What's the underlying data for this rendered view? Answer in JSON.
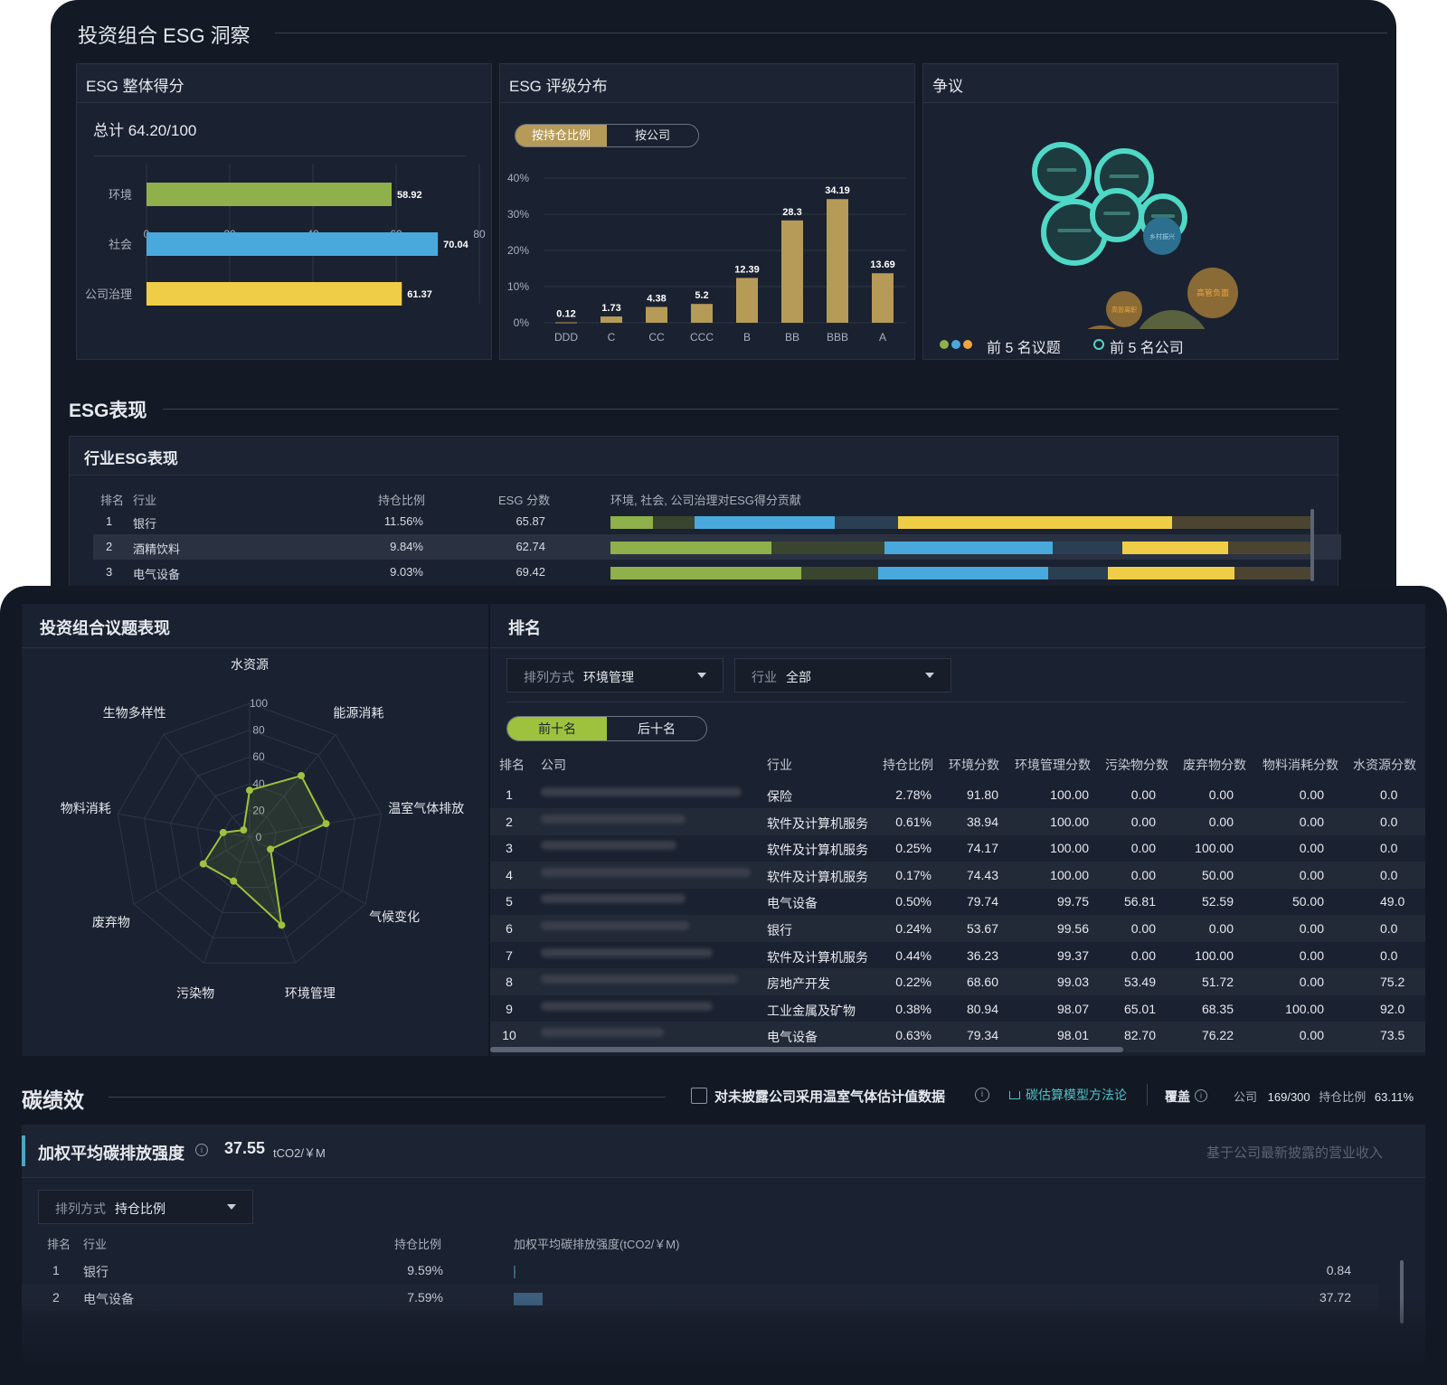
{
  "insight": {
    "title": "投资组合 ESG 洞察",
    "overall": {
      "title": "ESG 整体得分",
      "total": "总计 64.20/100",
      "bars": [
        {
          "label": "环境",
          "value": 58.92,
          "value_text": "58.92",
          "color": "#8fb04a"
        },
        {
          "label": "社会",
          "value": 70.04,
          "value_text": "70.04",
          "color": "#4aa9dc"
        },
        {
          "label": "公司治理",
          "value": 61.37,
          "value_text": "61.37",
          "color": "#f0cd46"
        }
      ],
      "x_ticks": [
        "0",
        "20",
        "40",
        "60",
        "80"
      ],
      "x_max": 80
    },
    "rating": {
      "title": "ESG 评级分布",
      "toggle": [
        "按持仓比例",
        "按公司"
      ],
      "y_ticks": [
        "0%",
        "10%",
        "20%",
        "30%",
        "40%"
      ],
      "y_max": 40,
      "categories": [
        "DDD",
        "C",
        "CC",
        "CCC",
        "B",
        "BB",
        "BBB",
        "A"
      ],
      "values": [
        0.12,
        1.73,
        4.38,
        5.2,
        12.39,
        28.3,
        34.19,
        13.69
      ],
      "value_texts": [
        "0.12",
        "1.73",
        "4.38",
        "5.2",
        "12.39",
        "28.3",
        "34.19",
        "13.69"
      ],
      "bar_color": "#b69b58"
    },
    "controversy": {
      "title": "争议",
      "bubbles_topics": [
        {
          "label": "法律诉讼",
          "color": "#8a6a35",
          "text_color": "#f0a640"
        },
        {
          "label": "绿色产品",
          "color": "#59613f",
          "text_color": "#b9d06a"
        },
        {
          "label": "高管负面",
          "color": "#8a6a35",
          "text_color": "#f0a640"
        },
        {
          "label": "高管离职",
          "color": "#8a6a35",
          "text_color": "#f0a640"
        },
        {
          "label": "乡村振兴",
          "color": "#2d6f8e",
          "text_color": "#9fd4ea"
        }
      ],
      "legend_topics": "前 5 名议题",
      "legend_companies": "前 5 名公司",
      "legend_dot_colors": [
        "#8fb04a",
        "#4aa9dc",
        "#f0a640"
      ],
      "ring_color": "#4fd8c6"
    }
  },
  "performance": {
    "title": "ESG表现",
    "industry": {
      "title": "行业ESG表现",
      "headers": [
        "排名",
        "行业",
        "持仓比例",
        "ESG 分数",
        "环境, 社会, 公司治理对ESG得分贡献"
      ],
      "rows": [
        {
          "rank": "1",
          "industry": "银行",
          "weight": "11.56%",
          "score": "65.87",
          "env": 6.0,
          "env_bg": 6.0,
          "soc": 20.0,
          "soc_bg": 9.0,
          "gov": 39.0,
          "gov_bg": 20.0
        },
        {
          "rank": "2",
          "industry": "酒精饮料",
          "weight": "9.84%",
          "score": "62.74",
          "env": 23.0,
          "env_bg": 16.0,
          "soc": 24.0,
          "soc_bg": 10.0,
          "gov": 15.0,
          "gov_bg": 12.0
        },
        {
          "rank": "3",
          "industry": "电气设备",
          "weight": "9.03%",
          "score": "69.42",
          "env": 27.0,
          "env_bg": 11.0,
          "soc": 24.0,
          "soc_bg": 8.5,
          "gov": 18.0,
          "gov_bg": 11.0
        }
      ]
    }
  },
  "issues": {
    "title": "投资组合议题表现",
    "axes": [
      "水资源",
      "能源消耗",
      "温室气体排放",
      "气候变化",
      "环境管理",
      "污染物",
      "废弃物",
      "物料消耗",
      "生物多样性"
    ],
    "values": [
      35,
      60,
      58,
      18,
      70,
      35,
      40,
      20,
      7
    ],
    "ticks": [
      "0",
      "20",
      "40",
      "60",
      "80",
      "100"
    ],
    "max": 100,
    "color": "#9ec23d"
  },
  "ranking": {
    "title": "排名",
    "sort_label": "排列方式",
    "sort_value": "环境管理",
    "industry_label": "行业",
    "industry_value": "全部",
    "toggle": [
      "前十名",
      "后十名"
    ],
    "headers": [
      "排名",
      "公司",
      "行业",
      "持仓比例",
      "环境分数",
      "环境管理分数",
      "污染物分数",
      "废弃物分数",
      "物料消耗分数",
      "水资源分数"
    ],
    "rows": [
      {
        "rank": "1",
        "industry": "保险",
        "weight": "2.78%",
        "env": "91.80",
        "mgmt": "100.00",
        "poll": "0.00",
        "waste": "0.00",
        "mat": "0.00",
        "water": "0.0"
      },
      {
        "rank": "2",
        "industry": "软件及计算机服务",
        "weight": "0.61%",
        "env": "38.94",
        "mgmt": "100.00",
        "poll": "0.00",
        "waste": "0.00",
        "mat": "0.00",
        "water": "0.0"
      },
      {
        "rank": "3",
        "industry": "软件及计算机服务",
        "weight": "0.25%",
        "env": "74.17",
        "mgmt": "100.00",
        "poll": "0.00",
        "waste": "100.00",
        "mat": "0.00",
        "water": "0.0"
      },
      {
        "rank": "4",
        "industry": "软件及计算机服务",
        "weight": "0.17%",
        "env": "74.43",
        "mgmt": "100.00",
        "poll": "0.00",
        "waste": "50.00",
        "mat": "0.00",
        "water": "0.0"
      },
      {
        "rank": "5",
        "industry": "电气设备",
        "weight": "0.50%",
        "env": "79.74",
        "mgmt": "99.75",
        "poll": "56.81",
        "waste": "52.59",
        "mat": "50.00",
        "water": "49.0"
      },
      {
        "rank": "6",
        "industry": "银行",
        "weight": "0.24%",
        "env": "53.67",
        "mgmt": "99.56",
        "poll": "0.00",
        "waste": "0.00",
        "mat": "0.00",
        "water": "0.0"
      },
      {
        "rank": "7",
        "industry": "软件及计算机服务",
        "weight": "0.44%",
        "env": "36.23",
        "mgmt": "99.37",
        "poll": "0.00",
        "waste": "100.00",
        "mat": "0.00",
        "water": "0.0"
      },
      {
        "rank": "8",
        "industry": "房地产开发",
        "weight": "0.22%",
        "env": "68.60",
        "mgmt": "99.03",
        "poll": "53.49",
        "waste": "51.72",
        "mat": "0.00",
        "water": "75.2"
      },
      {
        "rank": "9",
        "industry": "工业金属及矿物",
        "weight": "0.38%",
        "env": "80.94",
        "mgmt": "98.07",
        "poll": "65.01",
        "waste": "68.35",
        "mat": "100.00",
        "water": "92.0"
      },
      {
        "rank": "10",
        "industry": "电气设备",
        "weight": "0.63%",
        "env": "79.34",
        "mgmt": "98.01",
        "poll": "82.70",
        "waste": "76.22",
        "mat": "0.00",
        "water": "73.5"
      }
    ]
  },
  "carbon": {
    "title": "碳绩效",
    "checkbox_label": "对未披露公司采用温室气体估计值数据",
    "method_link": "碳估算模型方法论",
    "coverage_label": "覆盖",
    "company_label": "公司",
    "company_value": "169/300",
    "weight_label": "持仓比例",
    "weight_value": "63.11%",
    "intensity": {
      "title": "加权平均碳排放强度",
      "value": "37.55",
      "unit": "tCO2/￥M",
      "note": "基于公司最新披露的营业收入",
      "sort_label": "排列方式",
      "sort_value": "持仓比例",
      "headers": [
        "排名",
        "行业",
        "持仓比例",
        "加权平均碳排放强度(tCO2/￥M)"
      ],
      "rows": [
        {
          "rank": "1",
          "industry": "银行",
          "weight": "9.59%",
          "value": 0.84,
          "value_text": "0.84"
        },
        {
          "rank": "2",
          "industry": "电气设备",
          "weight": "7.59%",
          "value": 37.72,
          "value_text": "37.72"
        }
      ],
      "bar_color": "#3d5f7c"
    }
  }
}
